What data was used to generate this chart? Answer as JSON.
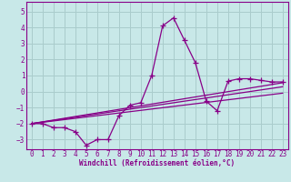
{
  "xlabel": "Windchill (Refroidissement éolien,°C)",
  "background_color": "#c8e8e8",
  "grid_color": "#aacccc",
  "line_color": "#880088",
  "xlim": [
    -0.5,
    23.5
  ],
  "ylim": [
    -3.6,
    5.6
  ],
  "yticks": [
    -3,
    -2,
    -1,
    0,
    1,
    2,
    3,
    4,
    5
  ],
  "xticks": [
    0,
    1,
    2,
    3,
    4,
    5,
    6,
    7,
    8,
    9,
    10,
    11,
    12,
    13,
    14,
    15,
    16,
    17,
    18,
    19,
    20,
    21,
    22,
    23
  ],
  "curve_x": [
    0,
    1,
    2,
    3,
    4,
    5,
    6,
    7,
    8,
    9,
    10,
    11,
    12,
    13,
    14,
    15,
    16,
    17,
    18,
    19,
    20,
    21,
    22,
    23
  ],
  "curve_y": [
    -2.0,
    -2.0,
    -2.25,
    -2.25,
    -2.5,
    -3.35,
    -3.0,
    -3.0,
    -1.5,
    -0.85,
    -0.7,
    1.0,
    4.1,
    4.6,
    3.2,
    1.8,
    -0.6,
    -1.2,
    0.65,
    0.8,
    0.8,
    0.7,
    0.6,
    0.6
  ],
  "line1_x": [
    0,
    23
  ],
  "line1_y": [
    -2.0,
    0.55
  ],
  "line2_x": [
    0,
    23
  ],
  "line2_y": [
    -2.0,
    0.3
  ],
  "line3_x": [
    0,
    23
  ],
  "line3_y": [
    -2.0,
    -0.1
  ]
}
